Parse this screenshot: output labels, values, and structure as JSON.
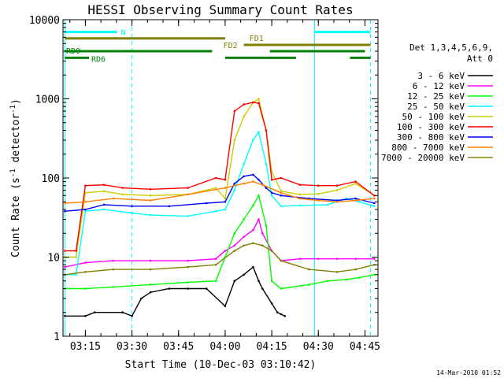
{
  "chart_data": {
    "type": "line",
    "title": "HESSI Observing Summary Count Rates",
    "xlabel": "Start Time (10-Dec-03 03:10:42)",
    "ylabel": "Count Rate (s",
    "ylabel_sup1": "-1",
    "ylabel_mid": " detector",
    "ylabel_sup2": "-1",
    "ylabel_end": ")",
    "y_scale": "log",
    "ylim": [
      1,
      10000
    ],
    "xlim": [
      3.13,
      4.82
    ],
    "x_ticks": [
      {
        "v": 3.25,
        "label": "03:15"
      },
      {
        "v": 3.5,
        "label": "03:30"
      },
      {
        "v": 3.75,
        "label": "03:45"
      },
      {
        "v": 4.0,
        "label": "04:00"
      },
      {
        "v": 4.25,
        "label": "04:15"
      },
      {
        "v": 4.5,
        "label": "04:30"
      },
      {
        "v": 4.75,
        "label": "04:45"
      }
    ],
    "y_ticks": [
      {
        "v": 1,
        "label": "1"
      },
      {
        "v": 10,
        "label": "10"
      },
      {
        "v": 100,
        "label": "100"
      },
      {
        "v": 1000,
        "label": "1000"
      },
      {
        "v": 10000,
        "label": "10000"
      }
    ],
    "legend_header": [
      "Det 1,3,4,5,6,9,",
      "Att 0"
    ],
    "legend_position": "right",
    "series": [
      {
        "name": "3 - 6 keV",
        "color": "#000000",
        "x": [
          3.14,
          3.25,
          3.3,
          3.45,
          3.5,
          3.55,
          3.6,
          3.7,
          3.8,
          3.9,
          4.0,
          4.05,
          4.1,
          4.15,
          4.18,
          4.2,
          4.25,
          4.28,
          4.3,
          4.32
        ],
        "y": [
          1.8,
          1.8,
          2,
          2,
          1.8,
          3,
          3.6,
          4,
          4,
          4,
          2.4,
          5,
          6,
          7.5,
          5,
          4,
          2.6,
          2,
          1.9,
          1.8
        ]
      },
      {
        "name": "6 - 12 keV",
        "color": "#ff00ff",
        "x": [
          3.14,
          3.25,
          3.4,
          3.6,
          3.8,
          3.95,
          4.0,
          4.05,
          4.1,
          4.15,
          4.18,
          4.2,
          4.25,
          4.3,
          4.4,
          4.5,
          4.6,
          4.7,
          4.8
        ],
        "y": [
          7.5,
          8.5,
          9,
          9,
          9,
          9.5,
          12,
          14,
          18,
          22,
          30,
          20,
          12,
          9,
          9.5,
          9.5,
          9.5,
          9.5,
          9.5
        ]
      },
      {
        "name": "12 - 25 keV",
        "color": "#00ff00",
        "x": [
          3.14,
          3.25,
          3.4,
          3.6,
          3.8,
          3.95,
          4.0,
          4.05,
          4.1,
          4.15,
          4.18,
          4.22,
          4.25,
          4.3,
          4.45,
          4.55,
          4.65,
          4.72,
          4.8
        ],
        "y": [
          4,
          4,
          4.2,
          4.5,
          4.8,
          5,
          10,
          20,
          30,
          45,
          60,
          25,
          5,
          4,
          4.5,
          5,
          5.2,
          5.5,
          6
        ]
      },
      {
        "name": "25 - 50 keV",
        "color": "#00ffff",
        "x": [
          3.14,
          3.2,
          3.25,
          3.35,
          3.5,
          3.6,
          3.8,
          3.95,
          4.0,
          4.05,
          4.1,
          4.15,
          4.18,
          4.22,
          4.25,
          4.3,
          4.4,
          4.55,
          4.65,
          4.72,
          4.8
        ],
        "y": [
          6,
          6,
          38,
          40,
          36,
          34,
          33,
          38,
          40,
          70,
          150,
          300,
          380,
          150,
          60,
          44,
          45,
          46,
          55,
          50,
          44
        ]
      },
      {
        "name": "50 - 100 keV",
        "color": "#cccc00",
        "x": [
          3.14,
          3.2,
          3.25,
          3.35,
          3.45,
          3.6,
          3.8,
          3.95,
          4.0,
          4.05,
          4.1,
          4.15,
          4.18,
          4.22,
          4.25,
          4.3,
          4.4,
          4.5,
          4.6,
          4.7,
          4.8
        ],
        "y": [
          10,
          10,
          65,
          68,
          62,
          60,
          62,
          75,
          55,
          300,
          600,
          900,
          1000,
          400,
          120,
          68,
          62,
          63,
          70,
          85,
          60
        ]
      },
      {
        "name": "100 - 300 keV",
        "color": "#ff0000",
        "x": [
          3.14,
          3.2,
          3.25,
          3.35,
          3.45,
          3.6,
          3.8,
          3.95,
          4.0,
          4.05,
          4.1,
          4.15,
          4.18,
          4.22,
          4.25,
          4.3,
          4.4,
          4.5,
          4.6,
          4.7,
          4.8
        ],
        "y": [
          12,
          12,
          80,
          82,
          75,
          72,
          75,
          100,
          95,
          700,
          850,
          900,
          880,
          400,
          95,
          100,
          82,
          80,
          80,
          90,
          60
        ]
      },
      {
        "name": "300 - 800 keV",
        "color": "#0000ff",
        "x": [
          3.14,
          3.25,
          3.35,
          3.5,
          3.7,
          3.9,
          4.0,
          4.05,
          4.1,
          4.15,
          4.18,
          4.22,
          4.25,
          4.3,
          4.45,
          4.6,
          4.7,
          4.8
        ],
        "y": [
          38,
          40,
          46,
          44,
          44,
          48,
          50,
          85,
          105,
          110,
          95,
          75,
          65,
          60,
          55,
          52,
          55,
          48
        ]
      },
      {
        "name": "800 - 7000 keV",
        "color": "#ff8000",
        "x": [
          3.14,
          3.25,
          3.4,
          3.6,
          3.8,
          4.0,
          4.1,
          4.15,
          4.2,
          4.3,
          4.4,
          4.5,
          4.6,
          4.7,
          4.8
        ],
        "y": [
          48,
          50,
          55,
          52,
          62,
          75,
          85,
          90,
          82,
          65,
          55,
          52,
          50,
          52,
          55
        ]
      },
      {
        "name": "7000 - 20000 keV",
        "color": "#808000",
        "x": [
          3.14,
          3.25,
          3.4,
          3.6,
          3.8,
          3.95,
          4.05,
          4.1,
          4.15,
          4.2,
          4.25,
          4.3,
          4.45,
          4.6,
          4.7,
          4.8
        ],
        "y": [
          6,
          6.5,
          7,
          7,
          7.5,
          8,
          12,
          14,
          15,
          14,
          12,
          9,
          7,
          6.5,
          7,
          8
        ]
      }
    ],
    "annotations": [
      {
        "label": "N",
        "color": "#00ffff",
        "segments": [
          [
            3.14,
            3.42
          ],
          [
            4.48,
            4.78
          ]
        ],
        "y": 7000
      },
      {
        "label": "FD1",
        "color": "#808000",
        "segments": [
          [
            3.14,
            4.0
          ]
        ],
        "y": 5800
      },
      {
        "label": "FD2",
        "color": "#808000",
        "segments": [
          [
            4.1,
            4.78
          ]
        ],
        "y": 4800
      },
      {
        "label": "RD0",
        "color": "#008000",
        "segments": [
          [
            3.14,
            3.93
          ],
          [
            4.24,
            4.75
          ]
        ],
        "y": 4000
      },
      {
        "label": "RD6",
        "color": "#008000",
        "segments": [
          [
            3.14,
            3.27
          ],
          [
            4.0,
            4.38
          ],
          [
            4.67,
            4.78
          ]
        ],
        "y": 3300
      }
    ],
    "vlines": [
      {
        "x": 3.14,
        "color": "#00ffff",
        "style": "solid"
      },
      {
        "x": 3.5,
        "color": "#00ffff",
        "style": "dashed"
      },
      {
        "x": 4.48,
        "color": "#00ffff",
        "style": "solid"
      },
      {
        "x": 4.78,
        "color": "#00ffff",
        "style": "dashed"
      }
    ]
  },
  "footer": {
    "timestamp": "14-Mar-2010 01:52"
  }
}
